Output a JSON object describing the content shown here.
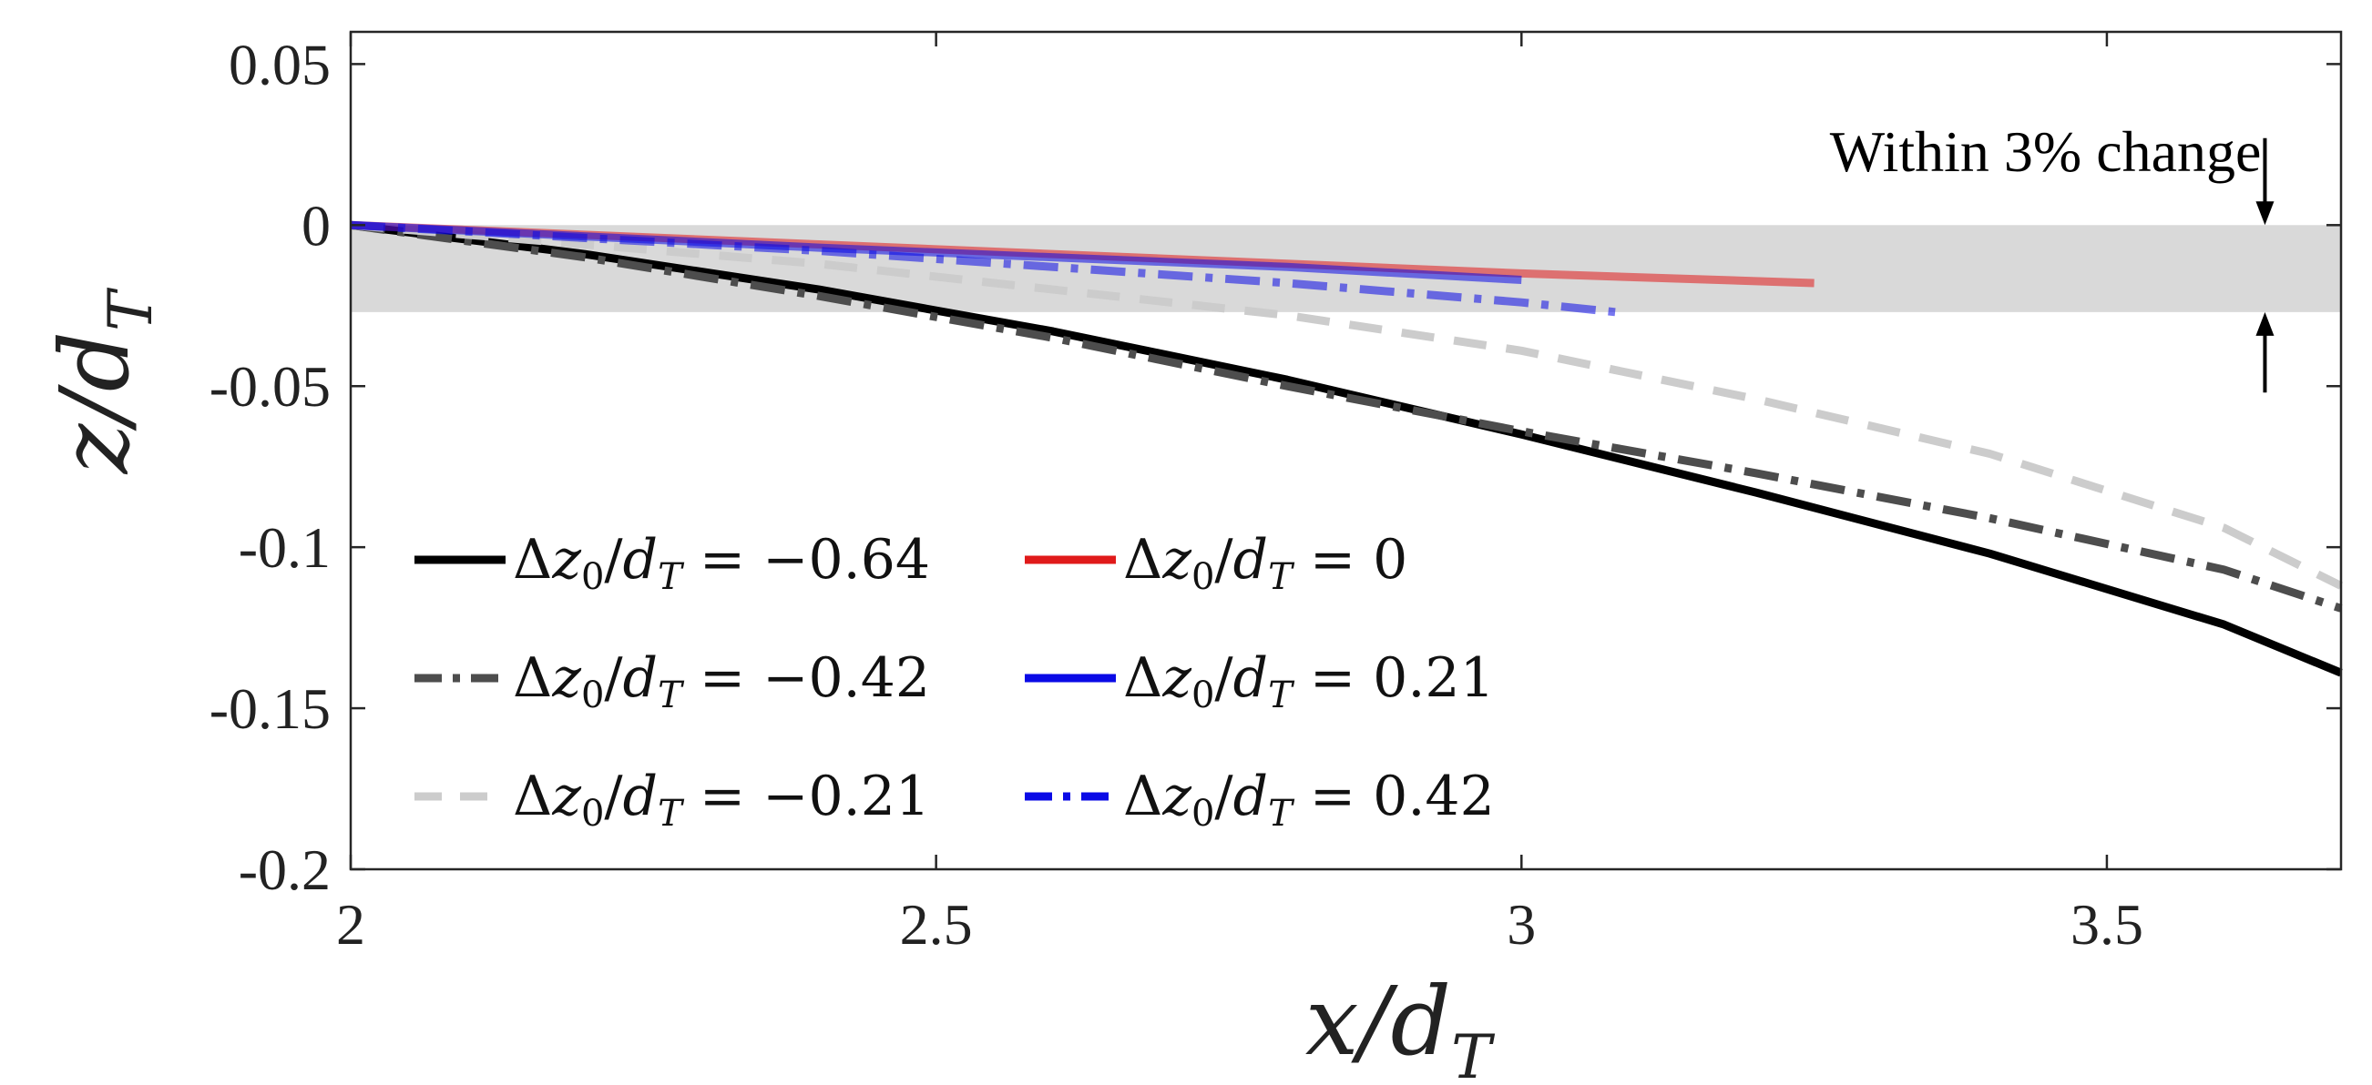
{
  "chart_data": {
    "type": "line",
    "xlabel": "x/d",
    "xlabel_sub": "T",
    "ylabel": "z/d",
    "ylabel_sub": "T",
    "xlim": [
      2,
      3.7
    ],
    "ylim": [
      -0.2,
      0.06
    ],
    "xticks": [
      2,
      2.5,
      3,
      3.5
    ],
    "xtick_labels": [
      "2",
      "2.5",
      "3",
      "3.5"
    ],
    "yticks": [
      0.05,
      0,
      -0.05,
      -0.1,
      -0.15,
      -0.2
    ],
    "ytick_labels": [
      "0.05",
      "0",
      "-0.05",
      "-0.1",
      "-0.15",
      "-0.2"
    ],
    "grid": false,
    "legend_position": "lower-left",
    "legend_columns": 2,
    "shaded_band": {
      "y_from": -0.027,
      "y_to": 0,
      "color": "#d9d9d9"
    },
    "annotation": {
      "text": "Within 3% change",
      "x": 3.635,
      "y_top_arrow_from": 0.027,
      "y_top_arrow_to": 0,
      "y_bottom_arrow_from": -0.052,
      "y_bottom_arrow_to": -0.027
    },
    "series": [
      {
        "name": "Δz0/dT = −0.64",
        "legend_parts": [
          "Δ",
          "z",
          "0",
          "/",
          "d",
          "T",
          " = −0.64"
        ],
        "color": "#000000",
        "dash": "solid",
        "opacity": 1,
        "x": [
          2,
          2.2,
          2.4,
          2.6,
          2.8,
          3.0,
          3.2,
          3.4,
          3.6,
          3.7
        ],
        "y": [
          0,
          -0.009,
          -0.02,
          -0.033,
          -0.048,
          -0.065,
          -0.083,
          -0.102,
          -0.124,
          -0.139
        ]
      },
      {
        "name": "Δz0/dT = −0.42",
        "legend_parts": [
          "Δ",
          "z",
          "0",
          "/",
          "d",
          "T",
          " = −0.42"
        ],
        "color": "#4d4d4d",
        "dash": "dashdot",
        "opacity": 1,
        "x": [
          2,
          2.2,
          2.4,
          2.6,
          2.8,
          3.0,
          3.2,
          3.4,
          3.6,
          3.7
        ],
        "y": [
          0,
          -0.01,
          -0.022,
          -0.035,
          -0.05,
          -0.064,
          -0.077,
          -0.091,
          -0.107,
          -0.119
        ]
      },
      {
        "name": "Δz0/dT = −0.21",
        "legend_parts": [
          "Δ",
          "z",
          "0",
          "/",
          "d",
          "T",
          " = −0.21"
        ],
        "color": "#cccccc",
        "dash": "dash",
        "opacity": 1,
        "x": [
          2,
          2.4,
          2.8,
          3.0,
          3.2,
          3.4,
          3.6,
          3.7
        ],
        "y": [
          0,
          -0.012,
          -0.028,
          -0.039,
          -0.054,
          -0.071,
          -0.094,
          -0.112
        ]
      },
      {
        "name": "Δz0/dT = 0",
        "legend_parts": [
          "Δ",
          "z",
          "0",
          "/",
          "d",
          "T",
          " = 0"
        ],
        "color": "#e01a1a",
        "dash": "solid",
        "opacity": 0.55,
        "x": [
          2,
          2.4,
          2.8,
          3.0,
          3.25
        ],
        "y": [
          0,
          -0.006,
          -0.012,
          -0.015,
          -0.018
        ]
      },
      {
        "name": "Δz0/dT = 0.21",
        "legend_parts": [
          "Δ",
          "z",
          "0",
          "/",
          "d",
          "T",
          " = 0.21"
        ],
        "color": "#0a0ae6",
        "dash": "solid",
        "opacity": 0.55,
        "x": [
          2,
          2.4,
          2.8,
          3.0
        ],
        "y": [
          0,
          -0.007,
          -0.013,
          -0.017
        ]
      },
      {
        "name": "Δz0/dT = 0.42",
        "legend_parts": [
          "Δ",
          "z",
          "0",
          "/",
          "d",
          "T",
          " = 0.42"
        ],
        "color": "#0a0ae6",
        "dash": "dashdot",
        "opacity": 0.55,
        "x": [
          2,
          2.4,
          2.8,
          3.0,
          3.08
        ],
        "y": [
          0,
          -0.008,
          -0.018,
          -0.024,
          -0.027
        ]
      }
    ]
  }
}
